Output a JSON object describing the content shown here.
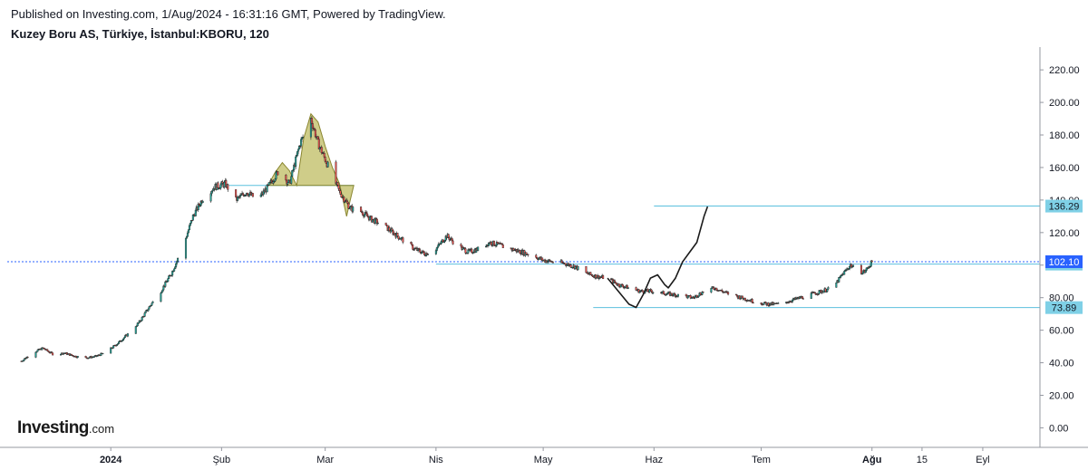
{
  "header": {
    "published": "Published on Investing.com, 1/Aug/2024 - 16:31:16 GMT, Powered by TradingView.",
    "title": "Kuzey Boru AS, Türkiye, İstanbul:KBORU, 120"
  },
  "logo": {
    "brand": "Investing",
    "suffix": ".com"
  },
  "colors": {
    "up": "#26a69a",
    "down": "#ef5350",
    "level_line": "#5bc0de",
    "current_line": "#2962ff",
    "pattern_fill": "#b5b24a",
    "projection": "#1a1a1a",
    "current_label": "#2962ff",
    "level_label": "#7fd0e6"
  },
  "chart_data": {
    "type": "candlestick",
    "title": "Kuzey Boru AS, Türkiye, İstanbul:KBORU, 120",
    "yaxis": {
      "position": "right",
      "ticks": [
        0.0,
        20.0,
        40.0,
        60.0,
        80.0,
        100.0,
        120.0,
        140.0,
        160.0,
        180.0,
        200.0,
        220.0
      ],
      "range": [
        -12,
        234
      ]
    },
    "xaxis": {
      "range": [
        "2023-12-01",
        "2024-09-17"
      ],
      "ticks": [
        {
          "label": "2024",
          "date": "2024-01-01",
          "bold": true
        },
        {
          "label": "Şub",
          "date": "2024-02-01"
        },
        {
          "label": "Mar",
          "date": "2024-03-01"
        },
        {
          "label": "Nis",
          "date": "2024-04-01"
        },
        {
          "label": "May",
          "date": "2024-05-01"
        },
        {
          "label": "Haz",
          "date": "2024-06-01"
        },
        {
          "label": "Tem",
          "date": "2024-07-01"
        },
        {
          "label": "Ağu",
          "date": "2024-08-01",
          "bold": true
        },
        {
          "label": "15",
          "date": "2024-08-15"
        },
        {
          "label": "Eyl",
          "date": "2024-09-01"
        }
      ]
    },
    "price_path": [
      [
        "2023-12-07",
        41
      ],
      [
        "2023-12-10",
        46
      ],
      [
        "2023-12-13",
        49
      ],
      [
        "2023-12-16",
        45
      ],
      [
        "2023-12-19",
        46
      ],
      [
        "2023-12-22",
        44
      ],
      [
        "2023-12-25",
        43
      ],
      [
        "2023-12-28",
        44
      ],
      [
        "2023-12-31",
        47
      ],
      [
        "2024-01-03",
        52
      ],
      [
        "2024-01-06",
        58
      ],
      [
        "2024-01-09",
        65
      ],
      [
        "2024-01-12",
        75
      ],
      [
        "2024-01-15",
        84
      ],
      [
        "2024-01-18",
        95
      ],
      [
        "2024-01-21",
        110
      ],
      [
        "2024-01-24",
        130
      ],
      [
        "2024-01-27",
        142
      ],
      [
        "2024-01-30",
        148
      ],
      [
        "2024-02-02",
        150
      ],
      [
        "2024-02-05",
        140
      ],
      [
        "2024-02-08",
        145
      ],
      [
        "2024-02-11",
        140
      ],
      [
        "2024-02-14",
        148
      ],
      [
        "2024-02-17",
        158
      ],
      [
        "2024-02-20",
        150
      ],
      [
        "2024-02-23",
        175
      ],
      [
        "2024-02-26",
        190
      ],
      [
        "2024-02-28",
        175
      ],
      [
        "2024-03-02",
        160
      ],
      [
        "2024-03-05",
        145
      ],
      [
        "2024-03-08",
        135
      ],
      [
        "2024-03-11",
        133
      ],
      [
        "2024-03-14",
        128
      ],
      [
        "2024-03-17",
        125
      ],
      [
        "2024-03-20",
        120
      ],
      [
        "2024-03-23",
        115
      ],
      [
        "2024-03-26",
        110
      ],
      [
        "2024-03-29",
        107
      ],
      [
        "2024-04-01",
        110
      ],
      [
        "2024-04-04",
        118
      ],
      [
        "2024-04-07",
        112
      ],
      [
        "2024-04-10",
        108
      ],
      [
        "2024-04-13",
        110
      ],
      [
        "2024-04-16",
        114
      ],
      [
        "2024-04-19",
        112
      ],
      [
        "2024-04-22",
        110
      ],
      [
        "2024-04-25",
        108
      ],
      [
        "2024-04-28",
        106
      ],
      [
        "2024-05-01",
        103
      ],
      [
        "2024-05-04",
        102
      ],
      [
        "2024-05-07",
        101
      ],
      [
        "2024-05-10",
        99
      ],
      [
        "2024-05-13",
        95
      ],
      [
        "2024-05-16",
        93
      ],
      [
        "2024-05-19",
        92
      ],
      [
        "2024-05-22",
        88
      ],
      [
        "2024-05-25",
        86
      ],
      [
        "2024-05-28",
        84
      ],
      [
        "2024-05-31",
        84
      ],
      [
        "2024-06-03",
        83
      ],
      [
        "2024-06-06",
        82
      ],
      [
        "2024-06-09",
        81
      ],
      [
        "2024-06-12",
        80
      ],
      [
        "2024-06-15",
        84
      ],
      [
        "2024-06-18",
        86
      ],
      [
        "2024-06-21",
        83
      ],
      [
        "2024-06-24",
        81
      ],
      [
        "2024-06-27",
        79
      ],
      [
        "2024-06-30",
        77
      ],
      [
        "2024-07-03",
        76
      ],
      [
        "2024-07-06",
        76
      ],
      [
        "2024-07-09",
        78
      ],
      [
        "2024-07-12",
        80
      ],
      [
        "2024-07-15",
        82
      ],
      [
        "2024-07-18",
        84
      ],
      [
        "2024-07-21",
        86
      ],
      [
        "2024-07-24",
        95
      ],
      [
        "2024-07-26",
        100
      ],
      [
        "2024-07-28",
        96
      ],
      [
        "2024-07-30",
        96
      ],
      [
        "2024-08-01",
        102
      ]
    ],
    "current_price": 102.1,
    "levels": [
      {
        "label": "136.29",
        "value": 136.29,
        "from": "2024-06-01"
      },
      {
        "label": "100.63",
        "value": 100.63,
        "from": "2024-04-01"
      },
      {
        "label": "73.89",
        "value": 73.89,
        "from": "2024-05-15"
      }
    ],
    "neckline": {
      "value": 149,
      "from": "2024-02-03",
      "to": "2024-03-09"
    },
    "head_and_shoulders": [
      [
        "2024-02-14",
        149
      ],
      [
        "2024-02-16",
        157
      ],
      [
        "2024-02-18",
        163
      ],
      [
        "2024-02-20",
        158
      ],
      [
        "2024-02-22",
        149
      ],
      [
        "2024-02-24",
        178
      ],
      [
        "2024-02-26",
        193
      ],
      [
        "2024-02-28",
        188
      ],
      [
        "2024-03-01",
        173
      ],
      [
        "2024-03-03",
        160
      ],
      [
        "2024-03-05",
        150
      ],
      [
        "2024-03-07",
        130
      ],
      [
        "2024-03-08",
        140
      ],
      [
        "2024-03-09",
        149
      ]
    ],
    "projection": [
      [
        "2024-05-19",
        92
      ],
      [
        "2024-05-22",
        84
      ],
      [
        "2024-05-25",
        76
      ],
      [
        "2024-05-27",
        74
      ],
      [
        "2024-05-29",
        82
      ],
      [
        "2024-05-31",
        92
      ],
      [
        "2024-06-02",
        94
      ],
      [
        "2024-06-04",
        88
      ],
      [
        "2024-06-05",
        86
      ],
      [
        "2024-06-07",
        92
      ],
      [
        "2024-06-09",
        102
      ],
      [
        "2024-06-11",
        108
      ],
      [
        "2024-06-13",
        114
      ],
      [
        "2024-06-15",
        130
      ],
      [
        "2024-06-16",
        136
      ]
    ]
  }
}
